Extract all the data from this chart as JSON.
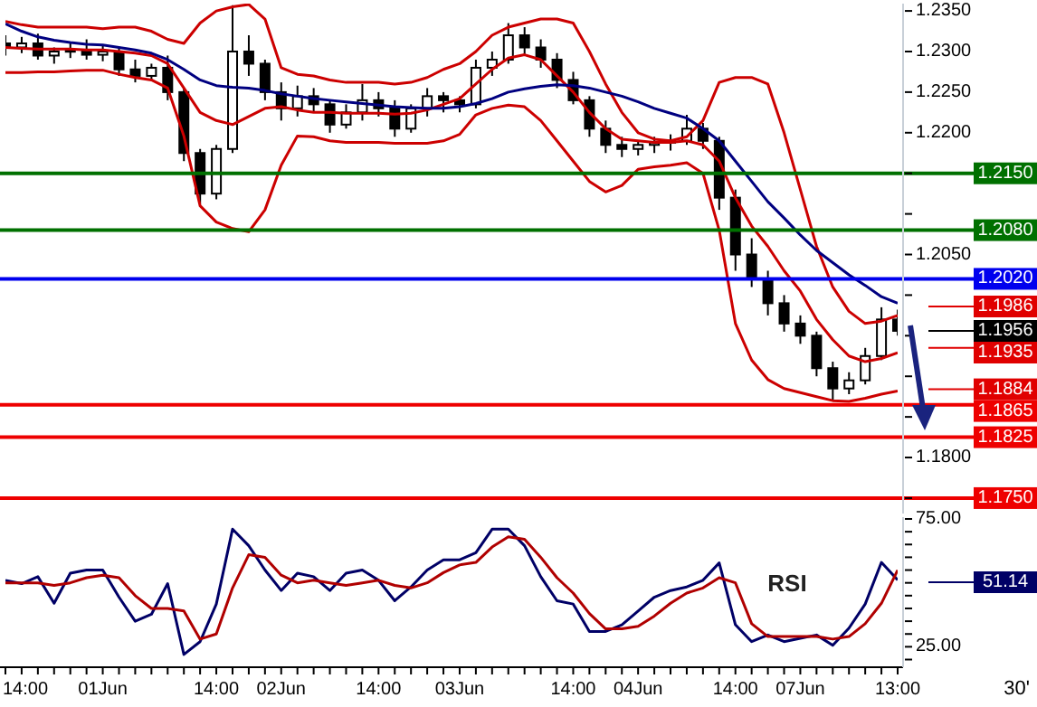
{
  "chart_data": [
    {
      "type": "candlestick",
      "color": "#000000",
      "marker": "none",
      "tick_labels": "y",
      "ohlc": [
        [
          1.231,
          1.232,
          1.2295,
          1.2305
        ],
        [
          1.2305,
          1.2318,
          1.2298,
          1.231
        ],
        [
          1.231,
          1.2322,
          1.229,
          1.2295
        ],
        [
          1.2295,
          1.2305,
          1.2285,
          1.23
        ],
        [
          1.23,
          1.2312,
          1.2292,
          1.2302
        ],
        [
          1.2302,
          1.2315,
          1.229,
          1.2296
        ],
        [
          1.2296,
          1.2308,
          1.2288,
          1.23
        ],
        [
          1.23,
          1.2305,
          1.227,
          1.2278
        ],
        [
          1.2278,
          1.229,
          1.2262,
          1.227
        ],
        [
          1.227,
          1.2285,
          1.2265,
          1.228
        ],
        [
          1.228,
          1.2295,
          1.224,
          1.225
        ],
        [
          1.225,
          1.2255,
          1.2165,
          1.2175
        ],
        [
          1.2175,
          1.218,
          1.2112,
          1.2125
        ],
        [
          1.2125,
          1.2185,
          1.2118,
          1.218
        ],
        [
          1.218,
          1.2357,
          1.2175,
          1.23
        ],
        [
          1.23,
          1.232,
          1.227,
          1.2285
        ],
        [
          1.2285,
          1.229,
          1.224,
          1.225
        ],
        [
          1.225,
          1.2262,
          1.2215,
          1.223
        ],
        [
          1.223,
          1.2258,
          1.222,
          1.2245
        ],
        [
          1.2245,
          1.2255,
          1.2225,
          1.2235
        ],
        [
          1.2235,
          1.224,
          1.22,
          1.221
        ],
        [
          1.221,
          1.2235,
          1.2205,
          1.2225
        ],
        [
          1.2225,
          1.226,
          1.2215,
          1.224
        ],
        [
          1.224,
          1.225,
          1.222,
          1.223
        ],
        [
          1.223,
          1.224,
          1.2195,
          1.2205
        ],
        [
          1.2205,
          1.2235,
          1.22,
          1.223
        ],
        [
          1.223,
          1.2255,
          1.222,
          1.2245
        ],
        [
          1.2245,
          1.225,
          1.2225,
          1.224
        ],
        [
          1.224,
          1.2245,
          1.2225,
          1.2235
        ],
        [
          1.2235,
          1.229,
          1.223,
          1.228
        ],
        [
          1.228,
          1.23,
          1.227,
          1.229
        ],
        [
          1.229,
          1.2335,
          1.2285,
          1.232
        ],
        [
          1.232,
          1.233,
          1.2295,
          1.2305
        ],
        [
          1.2305,
          1.2315,
          1.228,
          1.229
        ],
        [
          1.229,
          1.2298,
          1.2255,
          1.2265
        ],
        [
          1.2265,
          1.2275,
          1.2235,
          1.224
        ],
        [
          1.224,
          1.2245,
          1.2195,
          1.2205
        ],
        [
          1.2205,
          1.2215,
          1.2175,
          1.2185
        ],
        [
          1.2185,
          1.2195,
          1.217,
          1.218
        ],
        [
          1.218,
          1.219,
          1.2172,
          1.2185
        ],
        [
          1.2185,
          1.2195,
          1.2175,
          1.2188
        ],
        [
          1.2188,
          1.2198,
          1.2178,
          1.219
        ],
        [
          1.219,
          1.2222,
          1.2185,
          1.2205
        ],
        [
          1.2205,
          1.2212,
          1.218,
          1.219
        ],
        [
          1.219,
          1.2195,
          1.2105,
          1.212
        ],
        [
          1.212,
          1.213,
          1.203,
          1.205
        ],
        [
          1.205,
          1.207,
          1.201,
          1.202
        ],
        [
          1.202,
          1.203,
          1.1975,
          1.199
        ],
        [
          1.199,
          1.2,
          1.1955,
          1.1965
        ],
        [
          1.1965,
          1.1975,
          1.194,
          1.195
        ],
        [
          1.195,
          1.1955,
          1.19,
          1.191
        ],
        [
          1.191,
          1.1918,
          1.187,
          1.1885
        ],
        [
          1.1885,
          1.1905,
          1.1878,
          1.1895
        ],
        [
          1.1895,
          1.1935,
          1.189,
          1.1925
        ],
        [
          1.1925,
          1.1985,
          1.192,
          1.197
        ],
        [
          1.197,
          1.1982,
          1.195,
          1.1956
        ]
      ],
      "series": [
        {
          "type": "line",
          "color": "#cc0000",
          "values": [
            1.2337,
            1.2333,
            1.233,
            1.233,
            1.233,
            1.233,
            1.2328,
            1.233,
            1.233,
            1.2325,
            1.2315,
            1.231,
            1.2335,
            1.235,
            1.2355,
            1.2358,
            1.234,
            1.228,
            1.2272,
            1.227,
            1.2265,
            1.2262,
            1.2262,
            1.2262,
            1.226,
            1.2262,
            1.2268,
            1.2278,
            1.2285,
            1.23,
            1.232,
            1.233,
            1.2335,
            1.234,
            1.234,
            1.2335,
            1.23,
            1.226,
            1.2225,
            1.22,
            1.2192,
            1.219,
            1.2195,
            1.2215,
            1.2262,
            1.2268,
            1.2268,
            1.226,
            1.22,
            1.213,
            1.206,
            1.201,
            1.198,
            1.1965,
            1.1968,
            1.1975
          ]
        },
        {
          "type": "line",
          "color": "#cc0000",
          "values": [
            1.2305,
            1.2304,
            1.2303,
            1.2303,
            1.2303,
            1.2302,
            1.2302,
            1.23,
            1.2298,
            1.2295,
            1.2285,
            1.2255,
            1.2225,
            1.2215,
            1.221,
            1.222,
            1.223,
            1.2232,
            1.2228,
            1.2225,
            1.2225,
            1.2224,
            1.2224,
            1.2224,
            1.2223,
            1.2224,
            1.2228,
            1.2235,
            1.2242,
            1.226,
            1.2278,
            1.2292,
            1.2296,
            1.229,
            1.227,
            1.225,
            1.2225,
            1.2205,
            1.2192,
            1.219,
            1.2188,
            1.2188,
            1.219,
            1.2185,
            1.2165,
            1.212,
            1.2085,
            1.206,
            1.203,
            1.2005,
            1.197,
            1.1945,
            1.1925,
            1.1918,
            1.1922,
            1.1929
          ]
        },
        {
          "type": "line",
          "color": "#cc0000",
          "values": [
            1.2274,
            1.2274,
            1.2275,
            1.2275,
            1.2276,
            1.2277,
            1.2277,
            1.2272,
            1.2268,
            1.2265,
            1.2255,
            1.2196,
            1.211,
            1.209,
            1.2082,
            1.2078,
            1.2105,
            1.216,
            1.2196,
            1.2195,
            1.219,
            1.2188,
            1.2188,
            1.2188,
            1.2187,
            1.2187,
            1.2187,
            1.219,
            1.2198,
            1.2222,
            1.223,
            1.2234,
            1.2232,
            1.2215,
            1.219,
            1.2165,
            1.214,
            1.2127,
            1.2135,
            1.2155,
            1.2158,
            1.216,
            1.2163,
            1.215,
            1.208,
            1.1965,
            1.192,
            1.1896,
            1.1885,
            1.188,
            1.1875,
            1.187,
            1.1869,
            1.1873,
            1.1878,
            1.1882
          ]
        },
        {
          "type": "line",
          "color": "#000080",
          "values": [
            1.2334,
            1.2325,
            1.2318,
            1.2314,
            1.2311,
            1.2309,
            1.2308,
            1.2305,
            1.2302,
            1.2298,
            1.229,
            1.2278,
            1.2265,
            1.2258,
            1.2256,
            1.2255,
            1.2252,
            1.2248,
            1.2245,
            1.2242,
            1.224,
            1.2238,
            1.2236,
            1.2234,
            1.2232,
            1.2231,
            1.223,
            1.223,
            1.2232,
            1.2236,
            1.2242,
            1.225,
            1.2254,
            1.2257,
            1.2259,
            1.2258,
            1.2255,
            1.225,
            1.2245,
            1.2238,
            1.223,
            1.2224,
            1.2218,
            1.2205,
            1.219,
            1.2165,
            1.214,
            1.2115,
            1.2095,
            1.2074,
            1.2055,
            1.204,
            1.2025,
            1.2012,
            1.1998,
            1.199
          ]
        }
      ],
      "ylim": [
        1.1731,
        1.2359
      ],
      "yticks": [
        {
          "value": 1.235,
          "label": "1.2350"
        },
        {
          "value": 1.23,
          "label": "1.2300"
        },
        {
          "value": 1.225,
          "label": "1.2250"
        },
        {
          "value": 1.22,
          "label": "1.2200"
        },
        {
          "value": 1.215,
          "label": null
        },
        {
          "value": 1.21,
          "label": null
        },
        {
          "value": 1.205,
          "label": "1.2050"
        },
        {
          "value": 1.2,
          "label": null
        },
        {
          "value": 1.195,
          "label": null
        },
        {
          "value": 1.19,
          "label": null
        },
        {
          "value": 1.185,
          "label": null
        },
        {
          "value": 1.18,
          "label": "1.1800"
        },
        {
          "value": 1.175,
          "label": null
        }
      ],
      "ref_lines": [
        {
          "axis": "y",
          "value": 1.215,
          "label": "1.2150",
          "color": "#007000"
        },
        {
          "axis": "y",
          "value": 1.208,
          "label": "1.2080",
          "color": "#007000"
        },
        {
          "axis": "y",
          "value": 1.202,
          "label": "1.2020",
          "color": "#0000ee"
        },
        {
          "axis": "y",
          "value": 1.1865,
          "label": "1.1865",
          "color": "#ee0000"
        },
        {
          "axis": "y",
          "value": 1.1825,
          "label": "1.1825",
          "color": "#ee0000"
        },
        {
          "axis": "y",
          "value": 1.175,
          "label": "1.1750",
          "color": "#ee0000"
        }
      ],
      "annotations": [
        "1.1986",
        "1.1956",
        "1.1935",
        "1.1884"
      ]
    },
    {
      "type": "line",
      "title": "RSI",
      "marker": "none",
      "categories": [
        null,
        "14:00",
        null,
        null,
        null,
        null,
        "01Jun",
        null,
        null,
        null,
        null,
        null,
        null,
        "14:00",
        null,
        null,
        null,
        "02Jun",
        null,
        null,
        null,
        null,
        null,
        "14:00",
        null,
        null,
        null,
        null,
        "03Jun",
        null,
        null,
        null,
        null,
        null,
        null,
        "14:00",
        null,
        null,
        null,
        "04Jun",
        null,
        null,
        null,
        null,
        null,
        "14:00",
        null,
        null,
        null,
        "07Jun",
        null,
        null,
        null,
        null,
        null,
        "13:00"
      ],
      "series": [
        {
          "color": "#000066",
          "values": [
            51,
            49.7,
            52.4,
            42,
            53.8,
            55,
            55,
            44.4,
            35,
            37.7,
            49.7,
            22,
            27,
            41.7,
            71,
            64.5,
            55,
            47,
            53.8,
            52.4,
            47,
            53.8,
            55,
            51,
            43,
            48.4,
            55,
            59,
            59,
            61.8,
            71,
            71,
            64.5,
            52.4,
            43,
            41.7,
            31,
            31,
            33.6,
            39,
            44.4,
            47,
            48.4,
            51,
            57.8,
            33.6,
            27,
            29.6,
            27,
            28.3,
            29.6,
            25.6,
            32.3,
            41.7,
            58,
            51.14
          ]
        },
        {
          "color": "#b00000",
          "values": [
            50,
            50,
            50,
            49,
            50,
            52,
            53,
            52,
            45,
            40,
            40,
            39,
            28,
            30,
            48,
            61,
            60,
            53,
            50,
            51,
            50,
            49,
            50,
            51,
            49,
            48,
            50,
            54,
            57,
            58,
            64,
            68,
            67,
            60,
            52,
            46,
            38,
            32,
            32,
            33,
            37,
            42,
            46,
            48,
            52,
            50,
            34,
            29,
            29,
            29,
            29,
            28,
            29,
            34,
            42,
            55
          ]
        }
      ],
      "ylim": [
        17,
        75.7
      ],
      "yticks": [
        {
          "value": 75,
          "label": "75.00"
        },
        {
          "value": 70,
          "label": null
        },
        {
          "value": 65,
          "label": null
        },
        {
          "value": 60,
          "label": null
        },
        {
          "value": 55,
          "label": null
        },
        {
          "value": 50,
          "label": null
        },
        {
          "value": 45,
          "label": null
        },
        {
          "value": 40,
          "label": null
        },
        {
          "value": 35,
          "label": null
        },
        {
          "value": 30,
          "label": null
        },
        {
          "value": 25,
          "label": "25.00"
        },
        {
          "value": 20,
          "label": null
        }
      ],
      "annotations": [
        "51.14",
        "30'"
      ]
    }
  ]
}
